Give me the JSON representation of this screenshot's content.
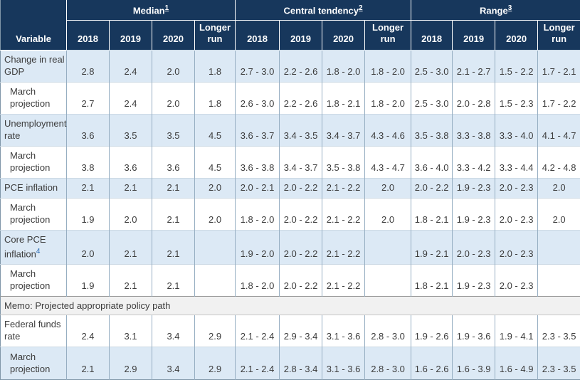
{
  "colors": {
    "header_bg": "#17375c",
    "header_text": "#ffffff",
    "row_alt_bg": "#dce9f5",
    "memo_bg": "#f1f1f1",
    "footnote_link_blue": "#2b6cb5",
    "body_text": "#3c3c3c"
  },
  "header": {
    "variable_label": "Variable",
    "groups": [
      {
        "label": "Median",
        "footnote": "1"
      },
      {
        "label": "Central tendency",
        "footnote": "2"
      },
      {
        "label": "Range",
        "footnote": "3"
      }
    ]
  },
  "chart_data": {
    "type": "table",
    "column_groups": [
      {
        "label": "Median",
        "footnote": "1",
        "columns": [
          "2018",
          "2019",
          "2020",
          "Longer run"
        ]
      },
      {
        "label": "Central tendency",
        "footnote": "2",
        "columns": [
          "2018",
          "2019",
          "2020",
          "Longer run"
        ]
      },
      {
        "label": "Range",
        "footnote": "3",
        "columns": [
          "2018",
          "2019",
          "2020",
          "Longer run"
        ]
      }
    ],
    "rows": [
      {
        "label": "Change in real GDP",
        "indent": false,
        "shaded": true,
        "median": [
          "2.8",
          "2.4",
          "2.0",
          "1.8"
        ],
        "central_tendency": [
          "2.7 - 3.0",
          "2.2 - 2.6",
          "1.8 - 2.0",
          "1.8 - 2.0"
        ],
        "range": [
          "2.5 - 3.0",
          "2.1 - 2.7",
          "1.5 - 2.2",
          "1.7 - 2.1"
        ]
      },
      {
        "label": "March projection",
        "indent": true,
        "shaded": false,
        "median": [
          "2.7",
          "2.4",
          "2.0",
          "1.8"
        ],
        "central_tendency": [
          "2.6 - 3.0",
          "2.2 - 2.6",
          "1.8 - 2.1",
          "1.8 - 2.0"
        ],
        "range": [
          "2.5 - 3.0",
          "2.0 - 2.8",
          "1.5 - 2.3",
          "1.7 - 2.2"
        ]
      },
      {
        "label": "Unemployment rate",
        "indent": false,
        "shaded": true,
        "median": [
          "3.6",
          "3.5",
          "3.5",
          "4.5"
        ],
        "central_tendency": [
          "3.6 - 3.7",
          "3.4 - 3.5",
          "3.4 - 3.7",
          "4.3 - 4.6"
        ],
        "range": [
          "3.5 - 3.8",
          "3.3 - 3.8",
          "3.3 - 4.0",
          "4.1 - 4.7"
        ]
      },
      {
        "label": "March projection",
        "indent": true,
        "shaded": false,
        "median": [
          "3.8",
          "3.6",
          "3.6",
          "4.5"
        ],
        "central_tendency": [
          "3.6 - 3.8",
          "3.4 - 3.7",
          "3.5 - 3.8",
          "4.3 - 4.7"
        ],
        "range": [
          "3.6 - 4.0",
          "3.3 - 4.2",
          "3.3 - 4.4",
          "4.2 - 4.8"
        ]
      },
      {
        "label": "PCE inflation",
        "indent": false,
        "shaded": true,
        "median": [
          "2.1",
          "2.1",
          "2.1",
          "2.0"
        ],
        "central_tendency": [
          "2.0 - 2.1",
          "2.0 - 2.2",
          "2.1 - 2.2",
          "2.0"
        ],
        "range": [
          "2.0 - 2.2",
          "1.9 - 2.3",
          "2.0 - 2.3",
          "2.0"
        ]
      },
      {
        "label": "March projection",
        "indent": true,
        "shaded": false,
        "median": [
          "1.9",
          "2.0",
          "2.1",
          "2.0"
        ],
        "central_tendency": [
          "1.8 - 2.0",
          "2.0 - 2.2",
          "2.1 - 2.2",
          "2.0"
        ],
        "range": [
          "1.8 - 2.1",
          "1.9 - 2.3",
          "2.0 - 2.3",
          "2.0"
        ]
      },
      {
        "label": "Core PCE inflation",
        "footnote": "4",
        "indent": false,
        "shaded": true,
        "median": [
          "2.0",
          "2.1",
          "2.1",
          ""
        ],
        "central_tendency": [
          "1.9 - 2.0",
          "2.0 - 2.2",
          "2.1 - 2.2",
          ""
        ],
        "range": [
          "1.9 - 2.1",
          "2.0 - 2.3",
          "2.0 - 2.3",
          ""
        ]
      },
      {
        "label": "March projection",
        "indent": true,
        "shaded": false,
        "median": [
          "1.9",
          "2.1",
          "2.1",
          ""
        ],
        "central_tendency": [
          "1.8 - 2.0",
          "2.0 - 2.2",
          "2.1 - 2.2",
          ""
        ],
        "range": [
          "1.8 - 2.1",
          "1.9 - 2.3",
          "2.0 - 2.3",
          ""
        ]
      },
      {
        "memo": true,
        "label": "Memo: Projected appropriate policy path"
      },
      {
        "label": "Federal funds rate",
        "indent": false,
        "shaded": false,
        "median": [
          "2.4",
          "3.1",
          "3.4",
          "2.9"
        ],
        "central_tendency": [
          "2.1 - 2.4",
          "2.9 - 3.4",
          "3.1 - 3.6",
          "2.8 - 3.0"
        ],
        "range": [
          "1.9 - 2.6",
          "1.9 - 3.6",
          "1.9 - 4.1",
          "2.3 - 3.5"
        ]
      },
      {
        "label": "March projection",
        "indent": true,
        "shaded": true,
        "median": [
          "2.1",
          "2.9",
          "3.4",
          "2.9"
        ],
        "central_tendency": [
          "2.1 - 2.4",
          "2.8 - 3.4",
          "3.1 - 3.6",
          "2.8 - 3.0"
        ],
        "range": [
          "1.6 - 2.6",
          "1.6 - 3.9",
          "1.6 - 4.9",
          "2.3 - 3.5"
        ]
      }
    ]
  }
}
